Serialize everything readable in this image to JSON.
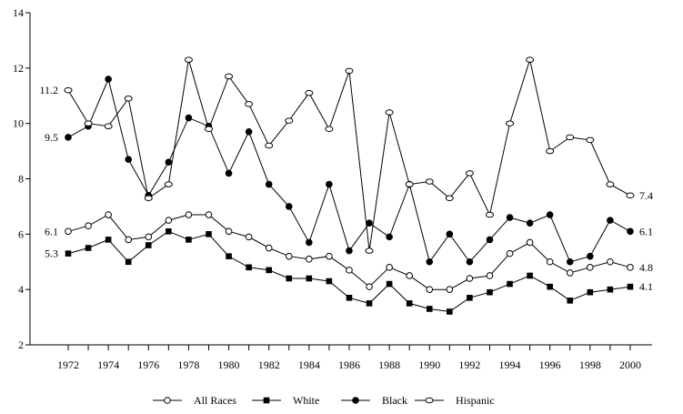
{
  "chart_data": {
    "type": "line",
    "title": "",
    "xlabel": "",
    "ylabel": "",
    "x": [
      1972,
      1973,
      1974,
      1975,
      1976,
      1977,
      1978,
      1979,
      1980,
      1981,
      1982,
      1983,
      1984,
      1985,
      1986,
      1987,
      1988,
      1989,
      1990,
      1991,
      1992,
      1993,
      1994,
      1995,
      1996,
      1997,
      1998,
      1999,
      2000
    ],
    "x_tick_labels": [
      "1972",
      "1974",
      "1976",
      "1978",
      "1980",
      "1982",
      "1984",
      "1986",
      "1988",
      "1990",
      "1992",
      "1994",
      "1996",
      "1998",
      "2000"
    ],
    "x_tick_values": [
      1972,
      1974,
      1976,
      1978,
      1980,
      1982,
      1984,
      1986,
      1988,
      1990,
      1992,
      1994,
      1996,
      1998,
      2000
    ],
    "y_ticks": [
      2,
      4,
      6,
      8,
      10,
      12,
      14
    ],
    "y_tick_labels": [
      "2",
      "4",
      "6",
      "8",
      "10",
      "12",
      "14"
    ],
    "xlim": [
      1971,
      2001
    ],
    "ylim": [
      2,
      14
    ],
    "grid": false,
    "legend_position": "bottom",
    "series": [
      {
        "name": "All Races",
        "marker": "circle-open",
        "values": [
          6.1,
          6.3,
          6.7,
          5.8,
          5.9,
          6.5,
          6.7,
          6.7,
          6.1,
          5.9,
          5.5,
          5.2,
          5.1,
          5.2,
          4.7,
          4.1,
          4.8,
          4.5,
          4.0,
          4.0,
          4.4,
          4.5,
          5.3,
          5.7,
          5.0,
          4.6,
          4.8,
          5.0,
          4.8
        ],
        "start_label": "6.1",
        "end_label": "4.8"
      },
      {
        "name": "White",
        "marker": "square-filled",
        "values": [
          5.3,
          5.5,
          5.8,
          5.0,
          5.6,
          6.1,
          5.8,
          6.0,
          5.2,
          4.8,
          4.7,
          4.4,
          4.4,
          4.3,
          3.7,
          3.5,
          4.2,
          3.5,
          3.3,
          3.2,
          3.7,
          3.9,
          4.2,
          4.5,
          4.1,
          3.6,
          3.9,
          4.0,
          4.1
        ],
        "start_label": "5.3",
        "end_label": "4.1"
      },
      {
        "name": "Black",
        "marker": "circle-filled",
        "values": [
          9.5,
          9.9,
          11.6,
          8.7,
          7.4,
          8.6,
          10.2,
          9.9,
          8.2,
          9.7,
          7.8,
          7.0,
          5.7,
          7.8,
          5.4,
          6.4,
          5.9,
          7.8,
          5.0,
          6.0,
          5.0,
          5.8,
          6.6,
          6.4,
          6.7,
          5.0,
          5.2,
          6.5,
          6.1
        ],
        "start_label": "9.5",
        "end_label": "6.1"
      },
      {
        "name": "Hispanic",
        "marker": "ellipse-open",
        "values": [
          11.2,
          10.0,
          9.9,
          10.9,
          7.3,
          7.8,
          12.3,
          9.8,
          11.7,
          10.7,
          9.2,
          10.1,
          11.1,
          9.8,
          11.9,
          5.4,
          10.4,
          7.8,
          7.9,
          7.3,
          8.2,
          6.7,
          10.0,
          12.3,
          9.0,
          9.5,
          9.4,
          7.8,
          7.4
        ],
        "start_label": "11.2",
        "end_label": "7.4"
      }
    ]
  }
}
